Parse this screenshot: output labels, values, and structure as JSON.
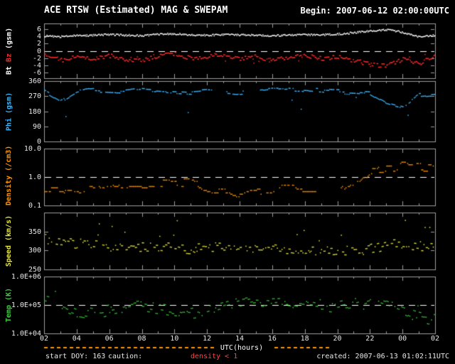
{
  "header": {
    "title": "ACE RTSW (Estimated) MAG & SWEPAM",
    "begin": "Begin: 2007-06-12 02:00:00UTC"
  },
  "footer": {
    "start_doy": "start DOY: 163",
    "caution_label": "caution:",
    "caution_value": "density < 1",
    "created": "created: 2007-06-13 01:02:11UTC"
  },
  "x_axis": {
    "title": "UTC(hours)",
    "start_hour": 2,
    "end_hour": 26,
    "tick_labels": [
      "02",
      "04",
      "06",
      "08",
      "10",
      "12",
      "14",
      "16",
      "18",
      "20",
      "22",
      "00",
      "02"
    ]
  },
  "colors": {
    "background": "#000000",
    "frame": "#9c9c9c",
    "tick_text": "#e8e8e8",
    "bt": "#ffffff",
    "bz": "#ff2a2a",
    "phi": "#3db7ff",
    "density": "#ff9500",
    "speed": "#e8e840",
    "temp": "#3ecf3e",
    "caution_bar": "#ff9500",
    "dashed_line": "#ffffff"
  },
  "chart_data": [
    {
      "type": "scatter",
      "name": "magnetic-field",
      "ylim": [
        -7.5,
        7.5
      ],
      "log": false,
      "yticks": [
        6,
        4,
        2,
        0,
        -2,
        -4,
        -6
      ],
      "ytick_labels": [
        "6",
        "4",
        "2",
        "0",
        "-2",
        "-4",
        "-6"
      ],
      "dashed_at": 0,
      "ylabel_parts": [
        {
          "text": "Bt ",
          "color": "#ffffff"
        },
        {
          "text": "Bz ",
          "color": "#ff2a2a"
        },
        {
          "text": "(gsm)",
          "color": "#ffffff"
        }
      ],
      "series": [
        {
          "name": "Bt",
          "color": "#ffffff",
          "points_per_hour": 20,
          "jitter": 0.25,
          "coherence": 1,
          "gap_prob": 0,
          "outlier_prob": 0,
          "outlier_spread": 0,
          "outlier_dir": 0,
          "values": [
            4.2,
            4.0,
            4.3,
            4.4,
            4.6,
            4.4,
            4.3,
            4.7,
            4.8,
            4.5,
            4.4,
            4.6,
            4.5,
            4.4,
            4.3,
            4.4,
            4.5,
            4.5,
            4.7,
            5.1,
            5.6,
            5.9,
            5.2,
            3.9,
            4.5
          ]
        },
        {
          "name": "Bz",
          "color": "#ff2a2a",
          "points_per_hour": 20,
          "jitter": 0.55,
          "coherence": 2,
          "gap_prob": 0.02,
          "outlier_prob": 0.03,
          "outlier_spread": 1.5,
          "outlier_dir": 0,
          "values": [
            -0.5,
            -2.5,
            -1.5,
            -2.0,
            -1.2,
            -2.2,
            -2.6,
            -1.2,
            -0.6,
            -2.0,
            -1.6,
            -1.0,
            -2.0,
            -1.5,
            -2.6,
            -1.6,
            -1.0,
            -2.0,
            -1.5,
            -2.6,
            -3.6,
            -4.0,
            -2.2,
            -3.4,
            -1.2
          ]
        }
      ]
    },
    {
      "type": "scatter",
      "name": "phi-angle",
      "ylim": [
        0,
        360
      ],
      "log": false,
      "yticks": [
        360,
        270,
        180,
        90,
        0
      ],
      "ytick_labels": [
        "360",
        "270",
        "180",
        "90",
        "0"
      ],
      "dashed_at": null,
      "ylabel_parts": [
        {
          "text": "Phi (gsm)",
          "color": "#3db7ff"
        }
      ],
      "series": [
        {
          "name": "Phi",
          "color": "#3db7ff",
          "points_per_hour": 16,
          "jitter": 12,
          "coherence": 5,
          "gap_prob": 0.2,
          "outlier_prob": 0.03,
          "outlier_spread": 170,
          "outlier_dir": -1,
          "gaps": [
            [
              12.3,
              13.1
            ],
            [
              14.3,
              15.2
            ]
          ],
          "values": [
            300,
            245,
            300,
            310,
            305,
            302,
            312,
            306,
            300,
            296,
            306,
            300,
            294,
            300,
            310,
            316,
            312,
            306,
            300,
            294,
            288,
            232,
            205,
            278,
            286
          ]
        }
      ]
    },
    {
      "type": "scatter",
      "name": "density",
      "ylim": [
        0.1,
        10
      ],
      "log": true,
      "yticks": [
        10,
        1,
        0.1
      ],
      "ytick_labels": [
        "10.0",
        "1.0",
        "0.1"
      ],
      "dashed_at": 1,
      "quantize_log": 0.045,
      "caution_hours": [
        2,
        19.6
      ],
      "ylabel_parts": [
        {
          "text": "Density (/cm3)",
          "color": "#ff9500"
        }
      ],
      "series": [
        {
          "name": "Density",
          "color": "#ff9500",
          "points_per_hour": 14,
          "jitter": 0.14,
          "coherence": 6,
          "gap_prob": 0.32,
          "outlier_prob": 0,
          "outlier_spread": 0,
          "outlier_dir": 0,
          "gaps": [
            [
              18.8,
              20.2
            ]
          ],
          "values": [
            0.4,
            0.35,
            0.3,
            0.45,
            0.5,
            0.6,
            0.55,
            0.6,
            0.7,
            0.65,
            0.35,
            0.3,
            0.25,
            0.3,
            0.4,
            0.45,
            0.4,
            0.35,
            0.3,
            0.55,
            1.6,
            2.2,
            2.6,
            2.3,
            2.0
          ]
        }
      ]
    },
    {
      "type": "scatter",
      "name": "speed",
      "ylim": [
        250,
        400
      ],
      "log": false,
      "yticks": [
        350,
        300,
        250
      ],
      "ytick_labels": [
        "350",
        "300",
        "250"
      ],
      "dashed_at": null,
      "ylabel_parts": [
        {
          "text": "Speed (km/s)",
          "color": "#e8e840"
        }
      ],
      "series": [
        {
          "name": "Speed",
          "color": "#e8e840",
          "points_per_hour": 14,
          "jitter": 13,
          "coherence": 2,
          "gap_prob": 0.22,
          "outlier_prob": 0.1,
          "outlier_spread": 70,
          "outlier_dir": 1,
          "values": [
            332,
            326,
            320,
            315,
            310,
            308,
            312,
            310,
            307,
            305,
            310,
            308,
            306,
            310,
            304,
            300,
            298,
            300,
            302,
            300,
            306,
            316,
            318,
            312,
            310
          ]
        }
      ]
    },
    {
      "type": "scatter",
      "name": "temperature",
      "ylim": [
        10000,
        1000000
      ],
      "log": true,
      "yticks": [
        1000000,
        100000,
        10000
      ],
      "ytick_labels": [
        "1.0E+06",
        "1.0E+05",
        "1.0E+04"
      ],
      "dashed_at": 100000,
      "ylabel_parts": [
        {
          "text": "Temp (K)",
          "color": "#3ecf3e"
        }
      ],
      "series": [
        {
          "name": "Temp",
          "color": "#3ecf3e",
          "points_per_hour": 12,
          "jitter": 0.2,
          "coherence": 2,
          "gap_prob": 0.25,
          "outlier_prob": 0.05,
          "outlier_spread": 0.45,
          "outlier_dir": 0,
          "values": [
            150000,
            100000,
            60000,
            50000,
            70000,
            90000,
            100000,
            80000,
            60000,
            50000,
            60000,
            90000,
            120000,
            150000,
            130000,
            140000,
            120000,
            100000,
            90000,
            110000,
            160000,
            120000,
            70000,
            40000,
            30000
          ]
        }
      ]
    }
  ]
}
